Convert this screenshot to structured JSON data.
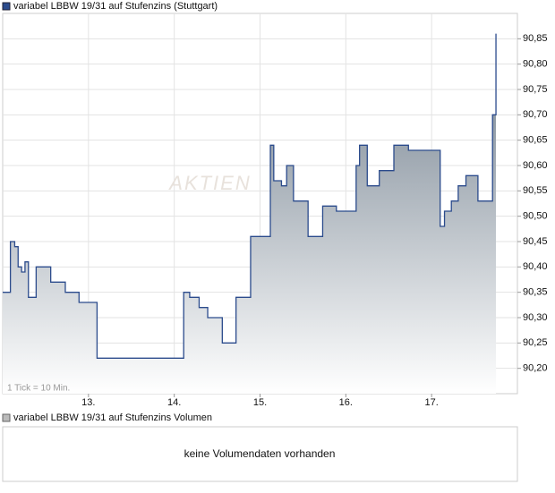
{
  "chart_data": {
    "type": "step-area",
    "title": "variabel LBBW 19/31 auf Stufenzins (Stuttgart)",
    "note": "1 Tick = 10 Min.",
    "watermark": "AKTIEN",
    "color": "#2b4b8c",
    "grid": true,
    "x": [
      12.0,
      12.09,
      12.14,
      12.18,
      12.22,
      12.26,
      12.3,
      12.39,
      12.56,
      12.73,
      12.89,
      13.1,
      14.11,
      14.18,
      14.29,
      14.39,
      14.56,
      14.72,
      14.89,
      15.12,
      15.16,
      15.25,
      15.31,
      15.39,
      15.56,
      15.73,
      15.89,
      16.12,
      16.16,
      16.25,
      16.39,
      16.56,
      16.73,
      17.1,
      17.15,
      17.23,
      17.31,
      17.4,
      17.54,
      17.71,
      17.75
    ],
    "values": [
      90.35,
      90.45,
      90.44,
      90.4,
      90.39,
      90.41,
      90.34,
      90.4,
      90.37,
      90.35,
      90.33,
      90.22,
      90.35,
      90.34,
      90.32,
      90.3,
      90.25,
      90.34,
      90.46,
      90.64,
      90.57,
      90.56,
      90.6,
      90.53,
      90.46,
      90.52,
      90.51,
      90.6,
      90.64,
      90.56,
      90.59,
      90.64,
      90.63,
      90.48,
      90.51,
      90.53,
      90.56,
      90.58,
      90.53,
      90.7,
      90.86
    ],
    "xlim": [
      12,
      18
    ],
    "xticks": [
      {
        "value": 13,
        "label": "13."
      },
      {
        "value": 14,
        "label": "14."
      },
      {
        "value": 15,
        "label": "15."
      },
      {
        "value": 16,
        "label": "16."
      },
      {
        "value": 17,
        "label": "17."
      }
    ],
    "ylim": [
      90.15,
      90.9
    ],
    "yticks": [
      {
        "value": 90.2,
        "label": "90,20"
      },
      {
        "value": 90.25,
        "label": "90,25"
      },
      {
        "value": 90.3,
        "label": "90,30"
      },
      {
        "value": 90.35,
        "label": "90,35"
      },
      {
        "value": 90.4,
        "label": "90,40"
      },
      {
        "value": 90.45,
        "label": "90,45"
      },
      {
        "value": 90.5,
        "label": "90,50"
      },
      {
        "value": 90.55,
        "label": "90,55"
      },
      {
        "value": 90.6,
        "label": "90,60"
      },
      {
        "value": 90.65,
        "label": "90,65"
      },
      {
        "value": 90.7,
        "label": "90,70"
      },
      {
        "value": 90.75,
        "label": "90,75"
      },
      {
        "value": 90.8,
        "label": "90,80"
      },
      {
        "value": 90.85,
        "label": "90,85"
      }
    ]
  },
  "volume_panel": {
    "legend": "variabel LBBW 19/31 auf Stufenzins Volumen",
    "message": "keine Volumendaten vorhanden"
  }
}
